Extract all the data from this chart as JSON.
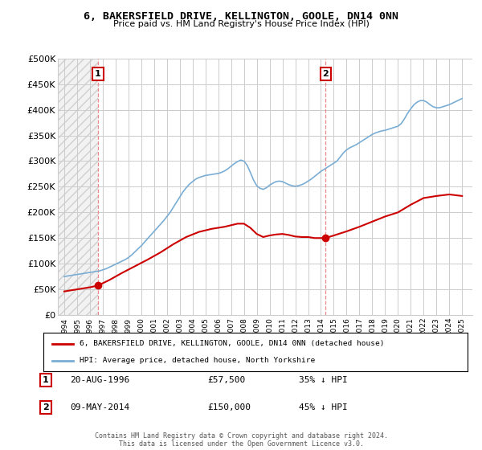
{
  "title": "6, BAKERSFIELD DRIVE, KELLINGTON, GOOLE, DN14 0NN",
  "subtitle": "Price paid vs. HM Land Registry's House Price Index (HPI)",
  "legend_line1": "6, BAKERSFIELD DRIVE, KELLINGTON, GOOLE, DN14 0NN (detached house)",
  "legend_line2": "HPI: Average price, detached house, North Yorkshire",
  "sale1_price": 57500,
  "sale1_year": 1996.63,
  "sale1_text": "20-AUG-1996",
  "sale1_amount": "£57,500",
  "sale1_hpi": "35% ↓ HPI",
  "sale2_price": 150000,
  "sale2_year": 2014.36,
  "sale2_text": "09-MAY-2014",
  "sale2_amount": "£150,000",
  "sale2_hpi": "45% ↓ HPI",
  "footer": "Contains HM Land Registry data © Crown copyright and database right 2024.\nThis data is licensed under the Open Government Licence v3.0.",
  "ylim": [
    0,
    500000
  ],
  "xlim_start": 1993.5,
  "xlim_end": 2025.8,
  "hpi_color": "#7aadd4",
  "price_color": "#cc0000",
  "grid_color": "#cccccc",
  "background_color": "#ffffff",
  "years_hpi": [
    1994.0,
    1994.25,
    1994.5,
    1994.75,
    1995.0,
    1995.25,
    1995.5,
    1995.75,
    1996.0,
    1996.25,
    1996.5,
    1996.75,
    1997.0,
    1997.25,
    1997.5,
    1997.75,
    1998.0,
    1998.25,
    1998.5,
    1998.75,
    1999.0,
    1999.25,
    1999.5,
    1999.75,
    2000.0,
    2000.25,
    2000.5,
    2000.75,
    2001.0,
    2001.25,
    2001.5,
    2001.75,
    2002.0,
    2002.25,
    2002.5,
    2002.75,
    2003.0,
    2003.25,
    2003.5,
    2003.75,
    2004.0,
    2004.25,
    2004.5,
    2004.75,
    2005.0,
    2005.25,
    2005.5,
    2005.75,
    2006.0,
    2006.25,
    2006.5,
    2006.75,
    2007.0,
    2007.25,
    2007.5,
    2007.75,
    2008.0,
    2008.25,
    2008.5,
    2008.75,
    2009.0,
    2009.25,
    2009.5,
    2009.75,
    2010.0,
    2010.25,
    2010.5,
    2010.75,
    2011.0,
    2011.25,
    2011.5,
    2011.75,
    2012.0,
    2012.25,
    2012.5,
    2012.75,
    2013.0,
    2013.25,
    2013.5,
    2013.75,
    2014.0,
    2014.25,
    2014.5,
    2014.75,
    2015.0,
    2015.25,
    2015.5,
    2015.75,
    2016.0,
    2016.25,
    2016.5,
    2016.75,
    2017.0,
    2017.25,
    2017.5,
    2017.75,
    2018.0,
    2018.25,
    2018.5,
    2018.75,
    2019.0,
    2019.25,
    2019.5,
    2019.75,
    2020.0,
    2020.25,
    2020.5,
    2020.75,
    2021.0,
    2021.25,
    2021.5,
    2021.75,
    2022.0,
    2022.25,
    2022.5,
    2022.75,
    2023.0,
    2023.25,
    2023.5,
    2023.75,
    2024.0,
    2024.25,
    2024.5,
    2024.75,
    2025.0
  ],
  "hpi_values": [
    75000,
    76000,
    77000,
    78000,
    79000,
    80000,
    81000,
    82000,
    83000,
    84000,
    85000,
    86000,
    88000,
    90000,
    93000,
    96000,
    99000,
    102000,
    105000,
    108000,
    112000,
    117000,
    123000,
    129000,
    135000,
    142000,
    149000,
    156000,
    163000,
    170000,
    177000,
    184000,
    192000,
    200000,
    210000,
    220000,
    230000,
    240000,
    248000,
    255000,
    260000,
    265000,
    268000,
    270000,
    272000,
    273000,
    274000,
    275000,
    276000,
    278000,
    281000,
    285000,
    290000,
    295000,
    299000,
    302000,
    300000,
    292000,
    278000,
    263000,
    252000,
    247000,
    245000,
    248000,
    253000,
    257000,
    260000,
    261000,
    260000,
    257000,
    254000,
    252000,
    251000,
    252000,
    254000,
    257000,
    261000,
    265000,
    270000,
    275000,
    280000,
    284000,
    288000,
    292000,
    296000,
    300000,
    308000,
    316000,
    322000,
    326000,
    329000,
    332000,
    336000,
    340000,
    344000,
    348000,
    352000,
    355000,
    357000,
    359000,
    360000,
    362000,
    364000,
    366000,
    368000,
    373000,
    382000,
    393000,
    402000,
    410000,
    415000,
    418000,
    418000,
    415000,
    410000,
    406000,
    404000,
    404000,
    406000,
    408000,
    410000,
    413000,
    416000,
    419000,
    422000
  ],
  "years_red": [
    1994.0,
    1995.0,
    1996.0,
    1996.63,
    1997.5,
    1998.5,
    1999.5,
    2000.5,
    2001.5,
    2002.5,
    2003.5,
    2004.5,
    2005.0,
    2005.5,
    2006.0,
    2006.5,
    2007.0,
    2007.5,
    2008.0,
    2008.5,
    2009.0,
    2009.5,
    2010.0,
    2010.5,
    2011.0,
    2011.5,
    2012.0,
    2012.5,
    2013.0,
    2013.5,
    2014.0,
    2014.36,
    2015.0,
    2016.0,
    2017.0,
    2018.0,
    2019.0,
    2020.0,
    2021.0,
    2022.0,
    2023.0,
    2024.0,
    2025.0
  ],
  "red_values": [
    46000,
    50000,
    54000,
    57500,
    68000,
    82000,
    95000,
    108000,
    122000,
    138000,
    152000,
    162000,
    165000,
    168000,
    170000,
    172000,
    175000,
    178000,
    178000,
    170000,
    158000,
    152000,
    155000,
    157000,
    158000,
    156000,
    153000,
    152000,
    152000,
    150000,
    150000,
    150000,
    155000,
    163000,
    172000,
    182000,
    192000,
    200000,
    215000,
    228000,
    232000,
    235000,
    232000
  ]
}
